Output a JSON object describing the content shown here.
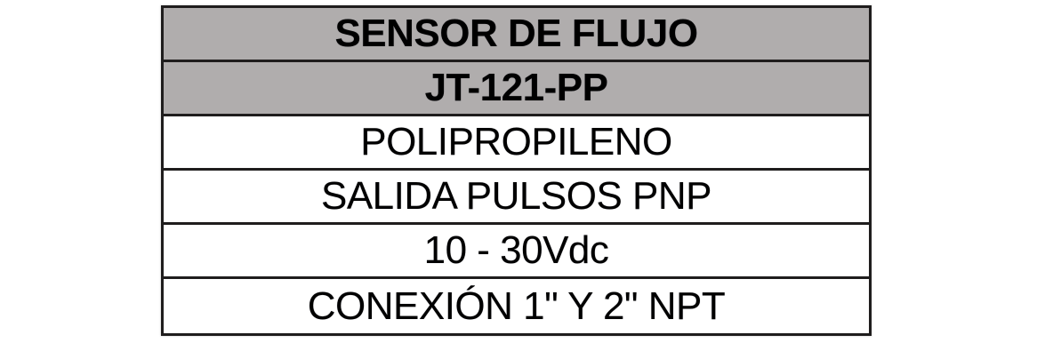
{
  "spec_table": {
    "rows": [
      {
        "label": "SENSOR DE FLUJO",
        "style": "header"
      },
      {
        "label": "JT-121-PP",
        "style": "header"
      },
      {
        "label": "POLIPROPILENO",
        "style": "body"
      },
      {
        "label": "SALIDA PULSOS PNP",
        "style": "body"
      },
      {
        "label": "10 - 30Vdc",
        "style": "body"
      },
      {
        "label": "CONEXIÓN 1\" Y 2\" NPT",
        "style": "body"
      }
    ]
  },
  "colors": {
    "header_background": "#b0adad",
    "body_background": "#ffffff",
    "border": "#1f1d1d",
    "text": "#000000",
    "page_background": "#ffffff"
  }
}
